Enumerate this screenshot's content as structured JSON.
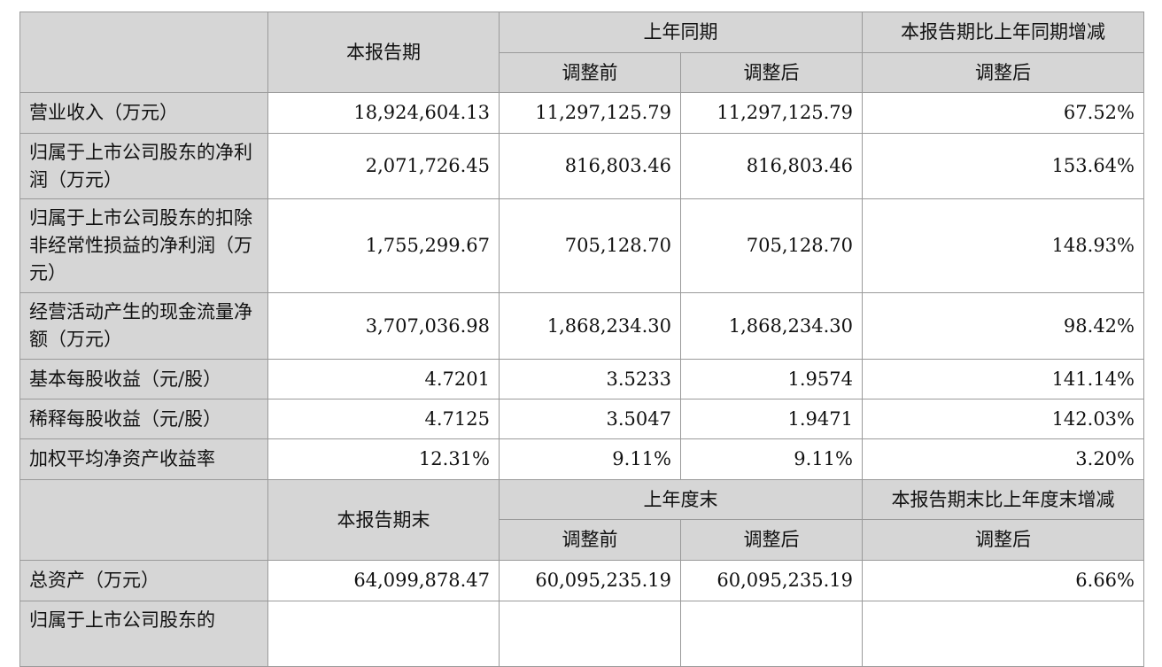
{
  "header1": {
    "current_period": "本报告期",
    "last_year_same_period": "上年同期",
    "change_label": "本报告期比上年同期增减",
    "before_adjustment": "调整前",
    "after_adjustment": "调整后",
    "change_after_adjustment": "调整后"
  },
  "rows1": [
    {
      "label": "营业收入（万元）",
      "current": "18,924,604.13",
      "before": "11,297,125.79",
      "after": "11,297,125.79",
      "change": "67.52%"
    },
    {
      "label": "归属于上市公司股东的净利润（万元）",
      "current": "2,071,726.45",
      "before": "816,803.46",
      "after": "816,803.46",
      "change": "153.64%"
    },
    {
      "label": "归属于上市公司股东的扣除非经常性损益的净利润（万元）",
      "current": "1,755,299.67",
      "before": "705,128.70",
      "after": "705,128.70",
      "change": "148.93%"
    },
    {
      "label": "经营活动产生的现金流量净额（万元）",
      "current": "3,707,036.98",
      "before": "1,868,234.30",
      "after": "1,868,234.30",
      "change": "98.42%"
    },
    {
      "label": "基本每股收益（元/股）",
      "current": "4.7201",
      "before": "3.5233",
      "after": "1.9574",
      "change": "141.14%"
    },
    {
      "label": "稀释每股收益（元/股）",
      "current": "4.7125",
      "before": "3.5047",
      "after": "1.9471",
      "change": "142.03%"
    },
    {
      "label": "加权平均净资产收益率",
      "current": "12.31%",
      "before": "9.11%",
      "after": "9.11%",
      "change": "3.20%"
    }
  ],
  "header2": {
    "period_end": "本报告期末",
    "last_year_end": "上年度末",
    "change_label": "本报告期末比上年度末增减",
    "before_adjustment": "调整前",
    "after_adjustment": "调整后",
    "change_after_adjustment": "调整后"
  },
  "rows2": [
    {
      "label": "总资产（万元）",
      "current": "64,099,878.47",
      "before": "60,095,235.19",
      "after": "60,095,235.19",
      "change": "6.66%"
    },
    {
      "label": "归属于上市公司股东的",
      "current": "",
      "before": "",
      "after": "",
      "change": ""
    }
  ]
}
